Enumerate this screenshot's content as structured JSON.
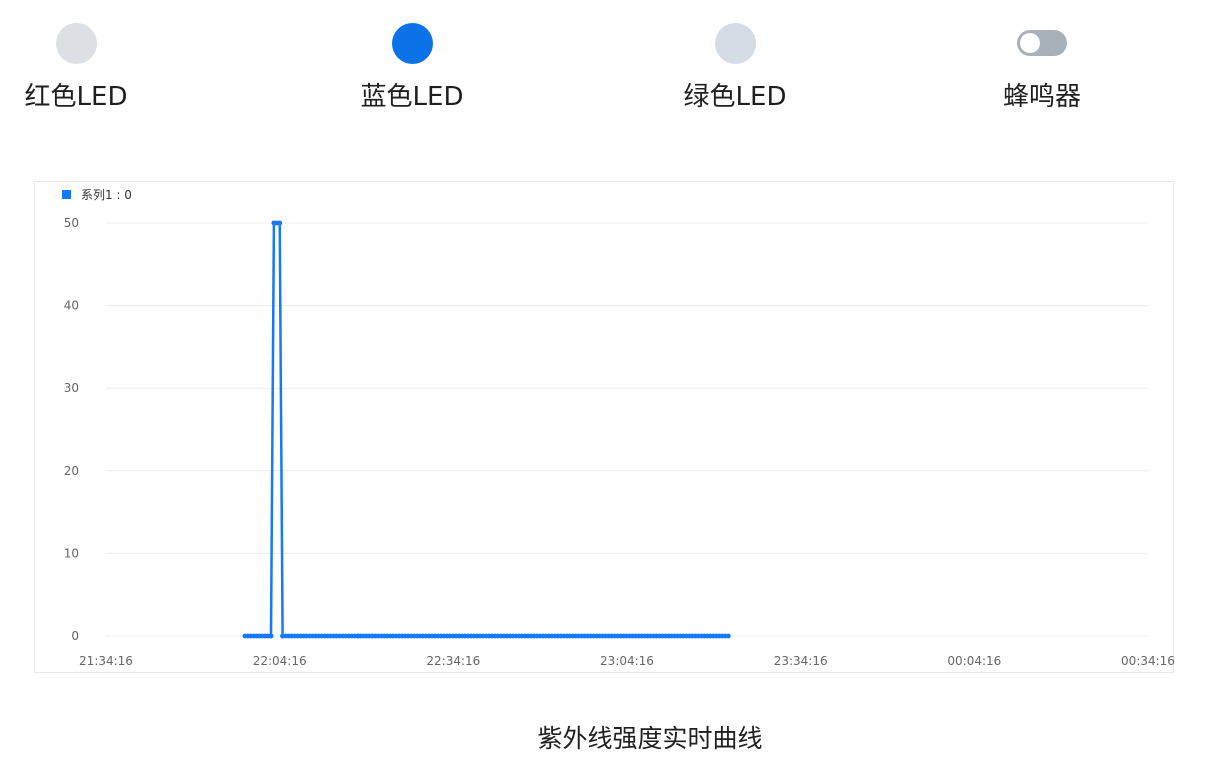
{
  "devices": [
    {
      "label": "红色LED",
      "kind": "led",
      "on": false,
      "color": "#dcdfe4"
    },
    {
      "label": "蓝色LED",
      "kind": "led",
      "on": true,
      "color": "#0b72e8"
    },
    {
      "label": "绿色LED",
      "kind": "led",
      "on": false,
      "color": "#d6dce6"
    },
    {
      "label": "蜂鸣器",
      "kind": "switch",
      "on": false,
      "color": "#a8b1ba"
    }
  ],
  "chart_data": {
    "type": "line",
    "title": "紫外线强度实时曲线",
    "legend": {
      "text": "系列1 : 0",
      "placement": "top-left"
    },
    "x_tick_labels": [
      "21:34:16",
      "22:04:16",
      "22:34:16",
      "23:04:16",
      "23:34:16",
      "00:04:16",
      "00:34:16"
    ],
    "y_ticks": [
      0,
      10,
      20,
      30,
      40,
      50
    ],
    "ylim": [
      0,
      50
    ],
    "grid": "horizontal",
    "series_color": "#1677ff",
    "series": [
      {
        "name": "系列1",
        "points": [
          {
            "t": "21:58:16",
            "v": 0
          },
          {
            "t": "22:02:46",
            "v": 0
          },
          {
            "t": "22:03:16",
            "v": 50
          },
          {
            "t": "22:04:16",
            "v": 50
          },
          {
            "t": "22:04:46",
            "v": 0
          },
          {
            "t": "22:17:46",
            "v": 0
          },
          {
            "t": "22:20:16",
            "v": 0
          },
          {
            "t": "23:21:46",
            "v": 0
          }
        ]
      }
    ]
  }
}
